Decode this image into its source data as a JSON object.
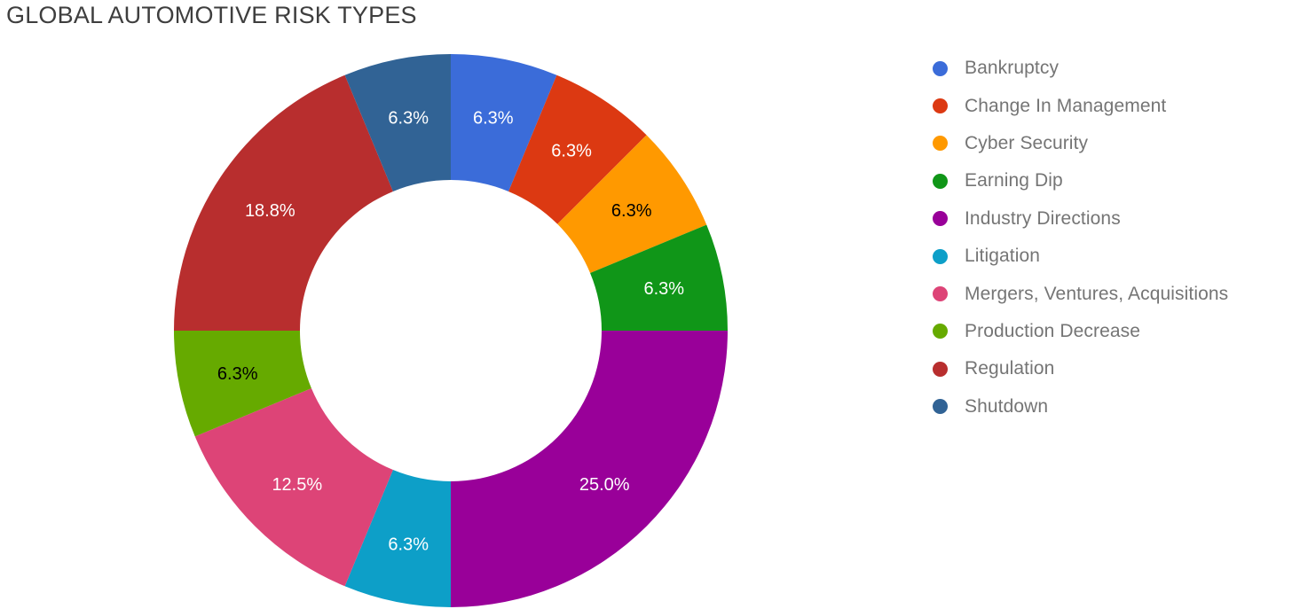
{
  "title": "GLOBAL AUTOMOTIVE RISK TYPES",
  "colors": {
    "background": "#ffffff",
    "title_text": "#3e3e3e",
    "legend_text": "#757575"
  },
  "chart_data": {
    "type": "pie",
    "variant": "donut",
    "title": "GLOBAL AUTOMOTIVE RISK TYPES",
    "legend_position": "right",
    "start_angle_deg": 0,
    "direction": "clockwise",
    "inner_radius_ratio": 0.545,
    "slices": [
      {
        "label": "Bankruptcy",
        "value": 6.25,
        "display": "6.3%",
        "color": "#3b6cd9",
        "label_color": "#ffffff"
      },
      {
        "label": "Change In Management",
        "value": 6.25,
        "display": "6.3%",
        "color": "#dc3912",
        "label_color": "#ffffff"
      },
      {
        "label": "Cyber Security",
        "value": 6.25,
        "display": "6.3%",
        "color": "#ff9900",
        "label_color": "#000000"
      },
      {
        "label": "Earning Dip",
        "value": 6.25,
        "display": "6.3%",
        "color": "#109618",
        "label_color": "#ffffff"
      },
      {
        "label": "Industry Directions",
        "value": 25.0,
        "display": "25.0%",
        "color": "#990099",
        "label_color": "#ffffff"
      },
      {
        "label": "Litigation",
        "value": 6.25,
        "display": "6.3%",
        "color": "#0d9fc8",
        "label_color": "#ffffff"
      },
      {
        "label": "Mergers, Ventures, Acquisitions",
        "value": 12.5,
        "display": "12.5%",
        "color": "#dd4477",
        "label_color": "#ffffff"
      },
      {
        "label": "Production Decrease",
        "value": 6.25,
        "display": "6.3%",
        "color": "#66aa00",
        "label_color": "#000000"
      },
      {
        "label": "Regulation",
        "value": 18.75,
        "display": "18.8%",
        "color": "#b82e2e",
        "label_color": "#ffffff"
      },
      {
        "label": "Shutdown",
        "value": 6.25,
        "display": "6.3%",
        "color": "#316395",
        "label_color": "#ffffff"
      }
    ]
  }
}
